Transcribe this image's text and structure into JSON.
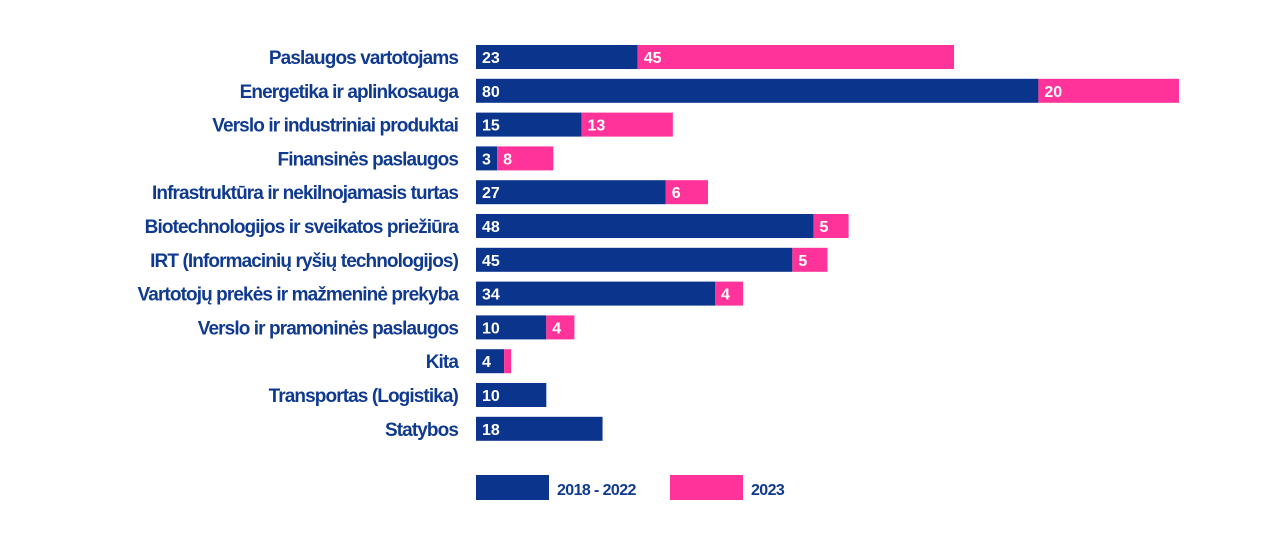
{
  "chart_data": {
    "type": "bar",
    "orientation": "horizontal",
    "stacked": true,
    "title": "",
    "xlabel": "",
    "ylabel": "",
    "grid": false,
    "legend_position": "bottom",
    "categories": [
      "Paslaugos vartotojams",
      "Energetika ir aplinkosauga",
      "Verslo ir industriniai produktai",
      "Finansinės paslaugos",
      "Infrastruktūra ir nekilnojamasis turtas",
      "Biotechnologijos ir sveikatos priežiūra",
      "IRT (Informacinių ryšių technologijos)",
      "Vartotojų prekės ir mažmeninė prekyba",
      "Verslo ir pramoninės paslaugos",
      "Kita",
      "Transportas (Logistika)",
      "Statybos"
    ],
    "series": [
      {
        "name": "2018 - 2022",
        "color": "#0b348c",
        "values": [
          23,
          80,
          15,
          3,
          27,
          48,
          45,
          34,
          10,
          4,
          10,
          18
        ],
        "labels": [
          "23",
          "80",
          "15",
          "3",
          "27",
          "48",
          "45",
          "34",
          "10",
          "4",
          "10",
          "18"
        ]
      },
      {
        "name": "2023",
        "color": "#ff3399",
        "values": [
          45,
          20,
          13,
          8,
          6,
          5,
          5,
          4,
          4,
          1,
          0,
          0
        ],
        "labels": [
          "45",
          "20",
          "13",
          "8",
          "6",
          "5",
          "5",
          "4",
          "4",
          "",
          "",
          ""
        ]
      }
    ],
    "xlim": [
      0,
      100
    ]
  }
}
